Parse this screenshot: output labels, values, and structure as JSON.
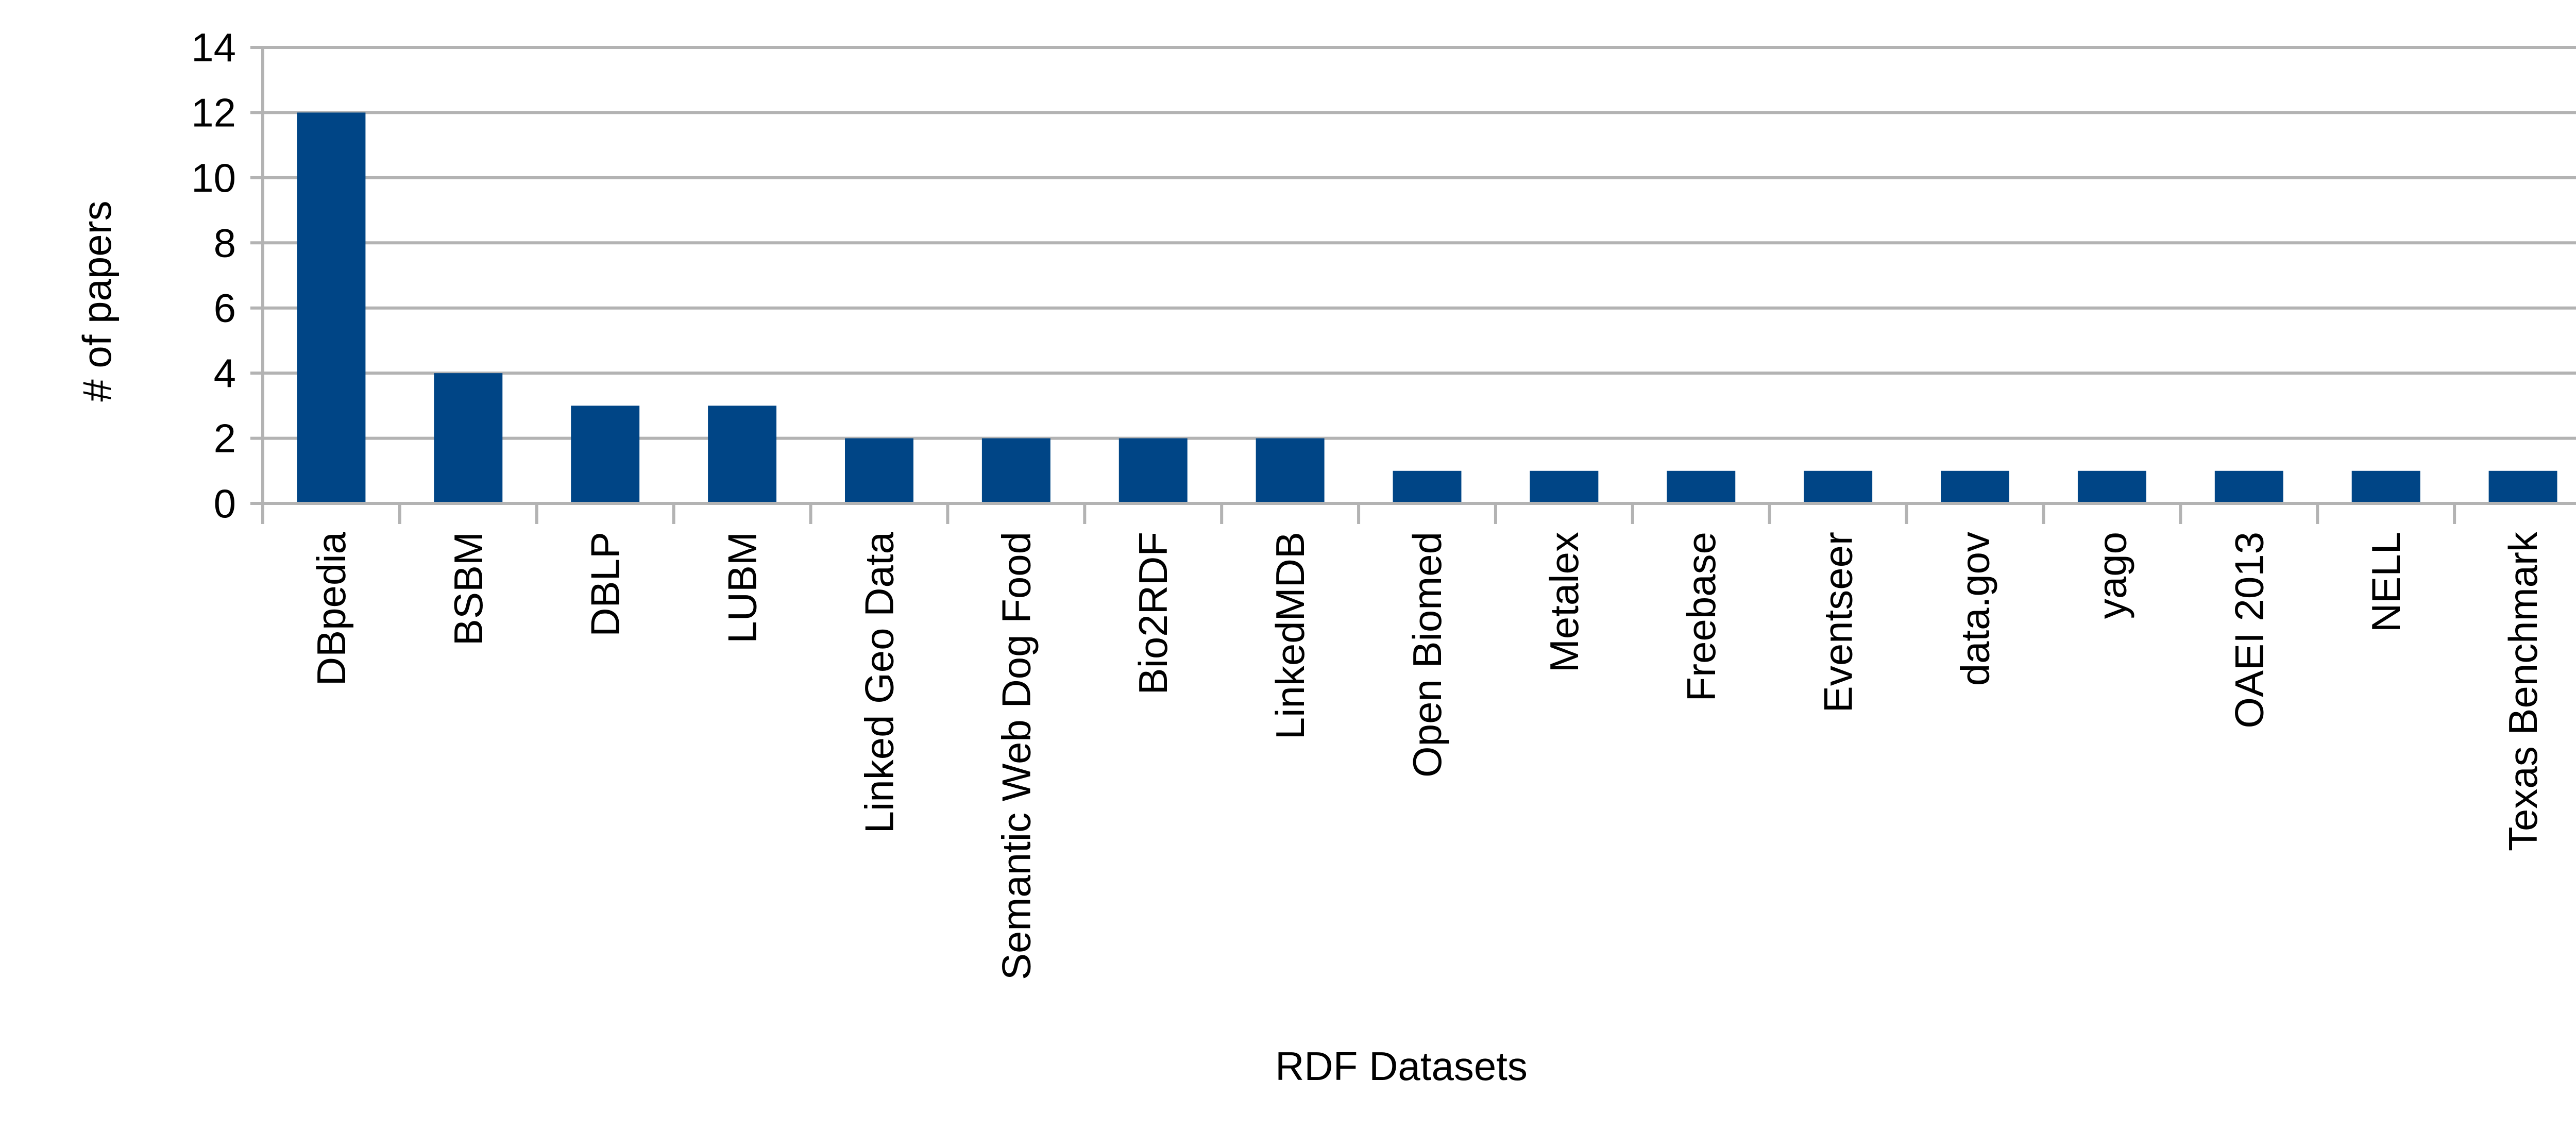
{
  "chart_data": {
    "type": "bar",
    "title": "",
    "xlabel": "RDF Datasets",
    "ylabel": "# of papers",
    "categories": [
      "DBpedia",
      "BSBM",
      "DBLP",
      "LUBM",
      "Linked Geo Data",
      "Semantic Web Dog Food",
      "Bio2RDF",
      "LinkedMDB",
      "Open Biomed",
      "Metalex",
      "Freebase",
      "Eventseer",
      "data.gov",
      "yago",
      "OAEI 2013",
      "NELL",
      "Texas Benchmark"
    ],
    "values": [
      12,
      4,
      3,
      3,
      2,
      2,
      2,
      2,
      1,
      1,
      1,
      1,
      1,
      1,
      1,
      1,
      1
    ],
    "ylim": [
      0,
      14
    ],
    "yticks": [
      0,
      2,
      4,
      6,
      8,
      10,
      12,
      14
    ],
    "grid": true,
    "legend": "none",
    "colors": {
      "bar": "#004586",
      "grid": "#b3b3b3",
      "text": "#000000"
    }
  }
}
